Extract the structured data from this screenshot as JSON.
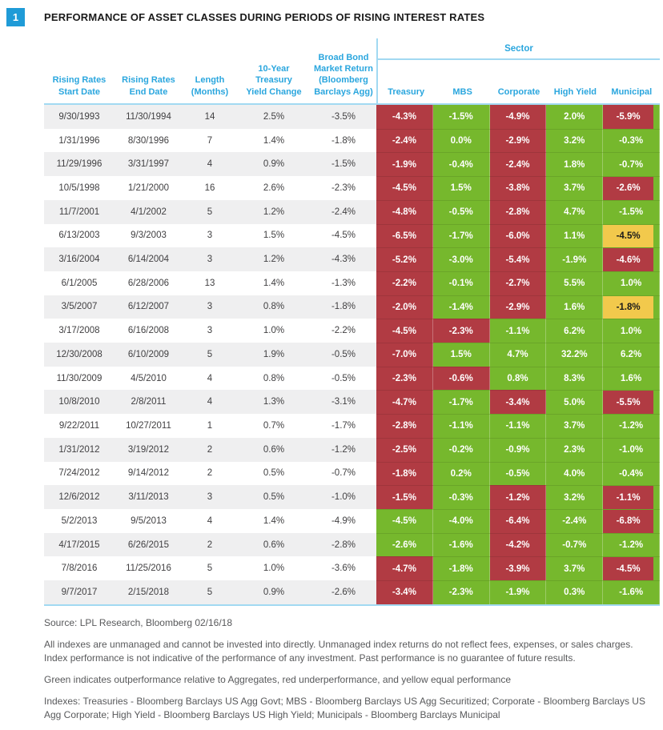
{
  "figure": {
    "number": "1",
    "title": "PERFORMANCE OF ASSET CLASSES DURING PERIODS OF RISING INTEREST RATES"
  },
  "colors": {
    "green_outperform": "#76b82d",
    "red_underperform": "#b13b43",
    "yellow_equal": "#f2c94c",
    "header_blue": "#2aa6de",
    "rule_light_blue": "#a2d9f2",
    "badge_blue": "#1f9bd7",
    "row_stripe": "#efeff0"
  },
  "chart_data": {
    "type": "table",
    "title": "PERFORMANCE OF ASSET CLASSES DURING PERIODS OF RISING INTEREST RATES",
    "left_columns": [
      "Rising Rates\nStart Date",
      "Rising Rates\nEnd Date",
      "Length\n(Months)",
      "10-Year\nTreasury\nYield Change",
      "Broad Bond\nMarket Return\n(Bloomberg\nBarclays Agg)"
    ],
    "sector_group_label": "Sector",
    "sector_columns": [
      "Treasury",
      "MBS",
      "Corporate",
      "High Yield",
      "Municipal"
    ],
    "cell_color_coding": {
      "green": "outperformance relative to Aggregates",
      "red": "underperformance",
      "yellow": "equal performance"
    },
    "rows": [
      {
        "start_date": "9/30/1993",
        "end_date": "11/30/1994",
        "length_months": "14",
        "treasury_yield_change": "2.5%",
        "agg_return": "-3.5%",
        "sectors": [
          {
            "value": "-4.3%",
            "status": "red"
          },
          {
            "value": "-1.5%",
            "status": "green"
          },
          {
            "value": "-4.9%",
            "status": "red"
          },
          {
            "value": "2.0%",
            "status": "green"
          },
          {
            "value": "-5.9%",
            "status": "red"
          }
        ]
      },
      {
        "start_date": "1/31/1996",
        "end_date": "8/30/1996",
        "length_months": "7",
        "treasury_yield_change": "1.4%",
        "agg_return": "-1.8%",
        "sectors": [
          {
            "value": "-2.4%",
            "status": "red"
          },
          {
            "value": "0.0%",
            "status": "green"
          },
          {
            "value": "-2.9%",
            "status": "red"
          },
          {
            "value": "3.2%",
            "status": "green"
          },
          {
            "value": "-0.3%",
            "status": "green"
          }
        ]
      },
      {
        "start_date": "11/29/1996",
        "end_date": "3/31/1997",
        "length_months": "4",
        "treasury_yield_change": "0.9%",
        "agg_return": "-1.5%",
        "sectors": [
          {
            "value": "-1.9%",
            "status": "red"
          },
          {
            "value": "-0.4%",
            "status": "green"
          },
          {
            "value": "-2.4%",
            "status": "red"
          },
          {
            "value": "1.8%",
            "status": "green"
          },
          {
            "value": "-0.7%",
            "status": "green"
          }
        ]
      },
      {
        "start_date": "10/5/1998",
        "end_date": "1/21/2000",
        "length_months": "16",
        "treasury_yield_change": "2.6%",
        "agg_return": "-2.3%",
        "sectors": [
          {
            "value": "-4.5%",
            "status": "red"
          },
          {
            "value": "1.5%",
            "status": "green"
          },
          {
            "value": "-3.8%",
            "status": "red"
          },
          {
            "value": "3.7%",
            "status": "green"
          },
          {
            "value": "-2.6%",
            "status": "red"
          }
        ]
      },
      {
        "start_date": "11/7/2001",
        "end_date": "4/1/2002",
        "length_months": "5",
        "treasury_yield_change": "1.2%",
        "agg_return": "-2.4%",
        "sectors": [
          {
            "value": "-4.8%",
            "status": "red"
          },
          {
            "value": "-0.5%",
            "status": "green"
          },
          {
            "value": "-2.8%",
            "status": "red"
          },
          {
            "value": "4.7%",
            "status": "green"
          },
          {
            "value": "-1.5%",
            "status": "green"
          }
        ]
      },
      {
        "start_date": "6/13/2003",
        "end_date": "9/3/2003",
        "length_months": "3",
        "treasury_yield_change": "1.5%",
        "agg_return": "-4.5%",
        "sectors": [
          {
            "value": "-6.5%",
            "status": "red"
          },
          {
            "value": "-1.7%",
            "status": "green"
          },
          {
            "value": "-6.0%",
            "status": "red"
          },
          {
            "value": "1.1%",
            "status": "green"
          },
          {
            "value": "-4.5%",
            "status": "yellow"
          }
        ]
      },
      {
        "start_date": "3/16/2004",
        "end_date": "6/14/2004",
        "length_months": "3",
        "treasury_yield_change": "1.2%",
        "agg_return": "-4.3%",
        "sectors": [
          {
            "value": "-5.2%",
            "status": "red"
          },
          {
            "value": "-3.0%",
            "status": "green"
          },
          {
            "value": "-5.4%",
            "status": "red"
          },
          {
            "value": "-1.9%",
            "status": "green"
          },
          {
            "value": "-4.6%",
            "status": "red"
          }
        ]
      },
      {
        "start_date": "6/1/2005",
        "end_date": "6/28/2006",
        "length_months": "13",
        "treasury_yield_change": "1.4%",
        "agg_return": "-1.3%",
        "sectors": [
          {
            "value": "-2.2%",
            "status": "red"
          },
          {
            "value": "-0.1%",
            "status": "green"
          },
          {
            "value": "-2.7%",
            "status": "red"
          },
          {
            "value": "5.5%",
            "status": "green"
          },
          {
            "value": "1.0%",
            "status": "green"
          }
        ]
      },
      {
        "start_date": "3/5/2007",
        "end_date": "6/12/2007",
        "length_months": "3",
        "treasury_yield_change": "0.8%",
        "agg_return": "-1.8%",
        "sectors": [
          {
            "value": "-2.0%",
            "status": "red"
          },
          {
            "value": "-1.4%",
            "status": "green"
          },
          {
            "value": "-2.9%",
            "status": "red"
          },
          {
            "value": "1.6%",
            "status": "green"
          },
          {
            "value": "-1.8%",
            "status": "yellow"
          }
        ]
      },
      {
        "start_date": "3/17/2008",
        "end_date": "6/16/2008",
        "length_months": "3",
        "treasury_yield_change": "1.0%",
        "agg_return": "-2.2%",
        "sectors": [
          {
            "value": "-4.5%",
            "status": "red"
          },
          {
            "value": "-2.3%",
            "status": "red"
          },
          {
            "value": "-1.1%",
            "status": "green"
          },
          {
            "value": "6.2%",
            "status": "green"
          },
          {
            "value": "1.0%",
            "status": "green"
          }
        ]
      },
      {
        "start_date": "12/30/2008",
        "end_date": "6/10/2009",
        "length_months": "5",
        "treasury_yield_change": "1.9%",
        "agg_return": "-0.5%",
        "sectors": [
          {
            "value": "-7.0%",
            "status": "red"
          },
          {
            "value": "1.5%",
            "status": "green"
          },
          {
            "value": "4.7%",
            "status": "green"
          },
          {
            "value": "32.2%",
            "status": "green"
          },
          {
            "value": "6.2%",
            "status": "green"
          }
        ]
      },
      {
        "start_date": "11/30/2009",
        "end_date": "4/5/2010",
        "length_months": "4",
        "treasury_yield_change": "0.8%",
        "agg_return": "-0.5%",
        "sectors": [
          {
            "value": "-2.3%",
            "status": "red"
          },
          {
            "value": "-0.6%",
            "status": "red"
          },
          {
            "value": "0.8%",
            "status": "green"
          },
          {
            "value": "8.3%",
            "status": "green"
          },
          {
            "value": "1.6%",
            "status": "green"
          }
        ]
      },
      {
        "start_date": "10/8/2010",
        "end_date": "2/8/2011",
        "length_months": "4",
        "treasury_yield_change": "1.3%",
        "agg_return": "-3.1%",
        "sectors": [
          {
            "value": "-4.7%",
            "status": "red"
          },
          {
            "value": "-1.7%",
            "status": "green"
          },
          {
            "value": "-3.4%",
            "status": "red"
          },
          {
            "value": "5.0%",
            "status": "green"
          },
          {
            "value": "-5.5%",
            "status": "red"
          }
        ]
      },
      {
        "start_date": "9/22/2011",
        "end_date": "10/27/2011",
        "length_months": "1",
        "treasury_yield_change": "0.7%",
        "agg_return": "-1.7%",
        "sectors": [
          {
            "value": "-2.8%",
            "status": "red"
          },
          {
            "value": "-1.1%",
            "status": "green"
          },
          {
            "value": "-1.1%",
            "status": "green"
          },
          {
            "value": "3.7%",
            "status": "green"
          },
          {
            "value": "-1.2%",
            "status": "green"
          }
        ]
      },
      {
        "start_date": "1/31/2012",
        "end_date": "3/19/2012",
        "length_months": "2",
        "treasury_yield_change": "0.6%",
        "agg_return": "-1.2%",
        "sectors": [
          {
            "value": "-2.5%",
            "status": "red"
          },
          {
            "value": "-0.2%",
            "status": "green"
          },
          {
            "value": "-0.9%",
            "status": "green"
          },
          {
            "value": "2.3%",
            "status": "green"
          },
          {
            "value": "-1.0%",
            "status": "green"
          }
        ]
      },
      {
        "start_date": "7/24/2012",
        "end_date": "9/14/2012",
        "length_months": "2",
        "treasury_yield_change": "0.5%",
        "agg_return": "-0.7%",
        "sectors": [
          {
            "value": "-1.8%",
            "status": "red"
          },
          {
            "value": "0.2%",
            "status": "green"
          },
          {
            "value": "-0.5%",
            "status": "green"
          },
          {
            "value": "4.0%",
            "status": "green"
          },
          {
            "value": "-0.4%",
            "status": "green"
          }
        ]
      },
      {
        "start_date": "12/6/2012",
        "end_date": "3/11/2013",
        "length_months": "3",
        "treasury_yield_change": "0.5%",
        "agg_return": "-1.0%",
        "sectors": [
          {
            "value": "-1.5%",
            "status": "red"
          },
          {
            "value": "-0.3%",
            "status": "green"
          },
          {
            "value": "-1.2%",
            "status": "red"
          },
          {
            "value": "3.2%",
            "status": "green"
          },
          {
            "value": "-1.1%",
            "status": "red"
          }
        ]
      },
      {
        "start_date": "5/2/2013",
        "end_date": "9/5/2013",
        "length_months": "4",
        "treasury_yield_change": "1.4%",
        "agg_return": "-4.9%",
        "sectors": [
          {
            "value": "-4.5%",
            "status": "green"
          },
          {
            "value": "-4.0%",
            "status": "green"
          },
          {
            "value": "-6.4%",
            "status": "red"
          },
          {
            "value": "-2.4%",
            "status": "green"
          },
          {
            "value": "-6.8%",
            "status": "red"
          }
        ]
      },
      {
        "start_date": "4/17/2015",
        "end_date": "6/26/2015",
        "length_months": "2",
        "treasury_yield_change": "0.6%",
        "agg_return": "-2.8%",
        "sectors": [
          {
            "value": "-2.6%",
            "status": "green"
          },
          {
            "value": "-1.6%",
            "status": "green"
          },
          {
            "value": "-4.2%",
            "status": "red"
          },
          {
            "value": "-0.7%",
            "status": "green"
          },
          {
            "value": "-1.2%",
            "status": "green"
          }
        ]
      },
      {
        "start_date": "7/8/2016",
        "end_date": "11/25/2016",
        "length_months": "5",
        "treasury_yield_change": "1.0%",
        "agg_return": "-3.6%",
        "sectors": [
          {
            "value": "-4.7%",
            "status": "red"
          },
          {
            "value": "-1.8%",
            "status": "green"
          },
          {
            "value": "-3.9%",
            "status": "red"
          },
          {
            "value": "3.7%",
            "status": "green"
          },
          {
            "value": "-4.5%",
            "status": "red"
          }
        ]
      },
      {
        "start_date": "9/7/2017",
        "end_date": "2/15/2018",
        "length_months": "5",
        "treasury_yield_change": "0.9%",
        "agg_return": "-2.6%",
        "sectors": [
          {
            "value": "-3.4%",
            "status": "red"
          },
          {
            "value": "-2.3%",
            "status": "green"
          },
          {
            "value": "-1.9%",
            "status": "green"
          },
          {
            "value": "0.3%",
            "status": "green"
          },
          {
            "value": "-1.6%",
            "status": "green"
          }
        ]
      }
    ]
  },
  "footer": {
    "source": "Source: LPL Research, Bloomberg   02/16/18",
    "disclaimer": "All indexes are unmanaged and cannot be invested into directly. Unmanaged index returns do not reflect fees, expenses, or sales charges. Index performance is not indicative of the performance of any investment. Past performance is no guarantee of future results.",
    "legend": "Green indicates outperformance relative to Aggregates, red underperformance, and yellow equal performance",
    "indexes": "Indexes: Treasuries - Bloomberg Barclays US Agg Govt; MBS - Bloomberg Barclays US Agg Securitized; Corporate - Bloomberg Barclays US Agg Corporate; High Yield - Bloomberg Barclays US High Yield; Municipals - Bloomberg Barclays Municipal"
  }
}
